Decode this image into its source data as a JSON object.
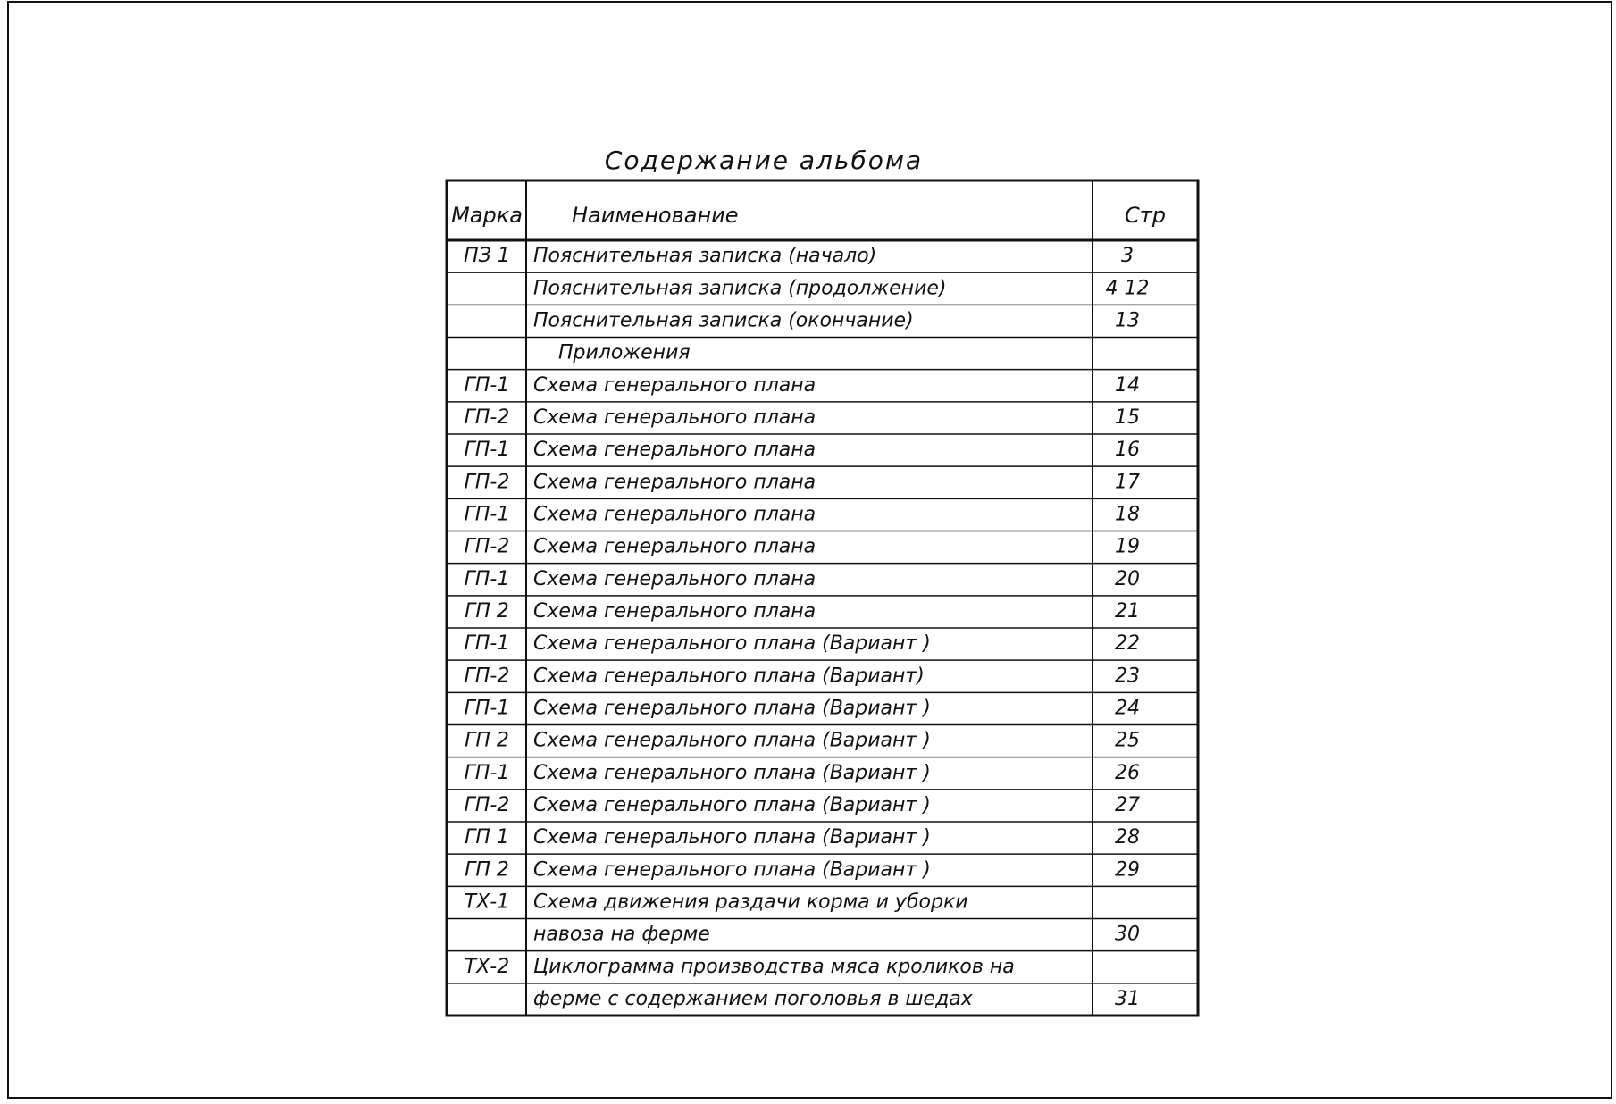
{
  "title": "Содержание альбома",
  "table": {
    "header": [
      "Марка",
      "Наименование",
      "Стр"
    ],
    "rows": [
      {
        "mark": "ПЗ 1",
        "name": "Пояснительная записка (начало)",
        "page": "3"
      },
      {
        "name": "Пояснительная записка (продолжение)",
        "page": "4 12"
      },
      {
        "name": "Пояснительная записка (окончание)",
        "page": "13"
      },
      {
        "name": "Приложения"
      },
      {
        "mark": "ГП-1",
        "name": "Схема генерального плана",
        "page": "14"
      },
      {
        "mark": "ГП-2",
        "name": "Схема генерального плана",
        "page": "15"
      },
      {
        "mark": "ГП-1",
        "name": "Схема генерального плана",
        "page": "16"
      },
      {
        "mark": "ГП-2",
        "name": "Схема генерального плана",
        "page": "17"
      },
      {
        "mark": "ГП-1",
        "name": "Схема генерального плана",
        "page": "18"
      },
      {
        "mark": "ГП-2",
        "name": "Схема генерального плана",
        "page": "19"
      },
      {
        "mark": "ГП-1",
        "name": "Схема генерального плана",
        "page": "20"
      },
      {
        "mark": "ГП 2",
        "name": "Схема генерального плана",
        "page": "21"
      },
      {
        "mark": "ГП-1",
        "name": "Схема генерального плана (Вариант )",
        "page": "22"
      },
      {
        "mark": "ГП-2",
        "name": "Схема генерального плана (Вариант)",
        "page": "23"
      },
      {
        "mark": "ГП-1",
        "name": "Схема генерального плана (Вариант )",
        "page": "24"
      },
      {
        "mark": "ГП 2",
        "name": "Схема генерального плана (Вариант )",
        "page": "25"
      },
      {
        "mark": "ГП-1",
        "name": "Схема генерального плана (Вариант )",
        "page": "26"
      },
      {
        "mark": "ГП-2",
        "name": "Схема генерального плана (Вариант )",
        "page": "27"
      },
      {
        "mark": "ГП 1",
        "name": "Схема генерального плана (Вариант )",
        "page": "28"
      },
      {
        "mark": "ГП 2",
        "name": "Схема генерального плана (Вариант )",
        "page": "29"
      },
      {
        "mark": "ТХ-1",
        "name": "Схема движения раздачи корма и уборки"
      },
      {
        "name": "навоза на ферме",
        "page": "30"
      },
      {
        "mark": "ТХ-2",
        "name": "Циклограмма производства мяса кроликов на"
      },
      {
        "name": "ферме с содержанием поголовья в шедах",
        "page": "31"
      }
    ]
  }
}
